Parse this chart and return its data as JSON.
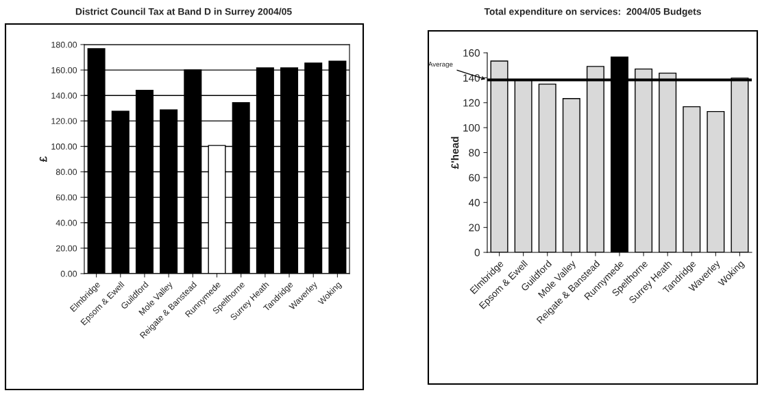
{
  "chart_data": [
    {
      "type": "bar",
      "title": "District Council Tax at Band D in Surrey 2004/05",
      "ylabel": "£",
      "categories": [
        "Elmbridge",
        "Epsom & Ewell",
        "Guildford",
        "Mole Valley",
        "Reigate & Banstead",
        "Runnymede",
        "Spelthorne",
        "Surrey Heath",
        "Tandridge",
        "Waverley",
        "Woking"
      ],
      "values": [
        176.8,
        127.6,
        144.1,
        128.7,
        160.1,
        100.7,
        134.4,
        161.7,
        161.7,
        165.5,
        166.9
      ],
      "colors": [
        "#000000",
        "#000000",
        "#000000",
        "#000000",
        "#000000",
        "#ffffff",
        "#000000",
        "#000000",
        "#000000",
        "#000000",
        "#000000"
      ],
      "ylim": [
        0,
        180
      ],
      "yticks": [
        {
          "value": 0,
          "label": "0.00"
        },
        {
          "value": 20,
          "label": "20.00"
        },
        {
          "value": 40,
          "label": "40.00"
        },
        {
          "value": 60,
          "label": "60.00"
        },
        {
          "value": 80,
          "label": "80.00"
        },
        {
          "value": 100,
          "label": "100.00"
        },
        {
          "value": 120,
          "label": "120.00"
        },
        {
          "value": 140,
          "label": "140.00"
        },
        {
          "value": 160,
          "label": "160.00"
        },
        {
          "value": 180,
          "label": "180.00"
        }
      ],
      "grid": "y"
    },
    {
      "type": "bar",
      "title": "Total expenditure on services:  2004/05 Budgets",
      "ylabel": "£'head",
      "categories": [
        "Elmbridge",
        "Epsom & Ewell",
        "Guildford",
        "Mole Valley",
        "Reigate & Banstead",
        "Runnymede",
        "Spelthorne",
        "Surrey Heath",
        "Tandridge",
        "Waverley",
        "Woking"
      ],
      "values": [
        153.4,
        138,
        134.9,
        123.3,
        149.1,
        156.6,
        147,
        143.7,
        116.8,
        112.9,
        139.7
      ],
      "colors": [
        "#d9d9d9",
        "#d9d9d9",
        "#d9d9d9",
        "#d9d9d9",
        "#d9d9d9",
        "#000000",
        "#d9d9d9",
        "#d9d9d9",
        "#d9d9d9",
        "#d9d9d9",
        "#d9d9d9"
      ],
      "ylim": [
        0,
        160
      ],
      "yticks": [
        0,
        20,
        40,
        60,
        80,
        100,
        120,
        140,
        160
      ],
      "grid": false,
      "ref_lines": [
        {
          "axis": "y",
          "value": 138.3,
          "label": "Average",
          "color": "#000000"
        }
      ]
    }
  ]
}
